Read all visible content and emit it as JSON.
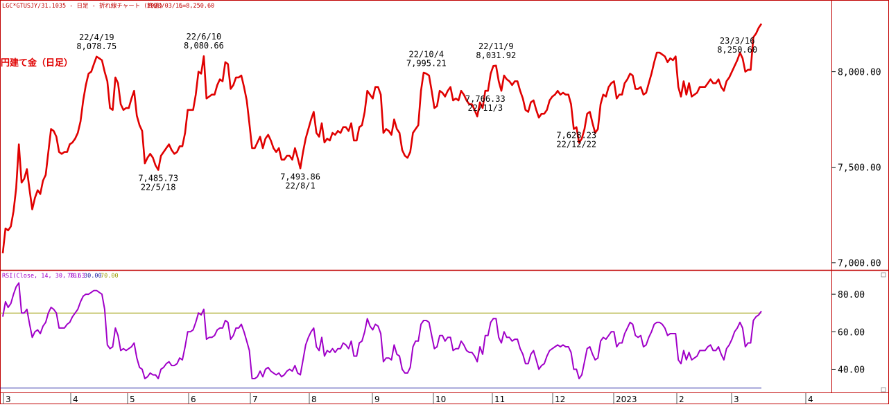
{
  "header": {
    "symbol_line": "LGC*GTUSJY/31.1035 - 日足 - 折れ線チャート (終値)",
    "date": "2023/03/16",
    "last": "L=8,250.60"
  },
  "legend_label": "円建て金（日足）",
  "rsi_header": {
    "label": "RSI(Close, 14, 30, 70)",
    "v1": "70.63",
    "v2": "30.00",
    "v3": "70.00"
  },
  "colors": {
    "price": "#e00000",
    "rsi": "#a000c8",
    "rsi_high": "#9c9c00",
    "rsi_low": "#2020a0",
    "frame": "#c00000",
    "month_line": "#c8c8c8"
  },
  "chart_data": [
    {
      "type": "line",
      "title": "LGC*GTUSJY/31.1035 - 日足 - 折れ線チャート (終値)",
      "ylim": [
        6970,
        8310
      ],
      "y_ticks": [
        "7,000.00",
        "7,500.00",
        "8,000.00"
      ],
      "y_tick_values": [
        7000,
        7500,
        8000
      ],
      "x_month_labels": [
        "3",
        "4",
        "5",
        "6",
        "7",
        "8",
        "9",
        "10",
        "11",
        "12",
        "2023",
        "2",
        "3",
        "4"
      ],
      "grid": false,
      "series": [
        {
          "values": [
            7050,
            7180,
            7170,
            7190,
            7270,
            7390,
            7620,
            7420,
            7440,
            7490,
            7380,
            7280,
            7340,
            7380,
            7360,
            7430,
            7460,
            7580,
            7700,
            7690,
            7660,
            7580,
            7570,
            7580,
            7580,
            7620,
            7630,
            7650,
            7680,
            7740,
            7850,
            7930,
            7990,
            8000,
            8040,
            8079,
            8070,
            8060,
            8000,
            7950,
            7810,
            7800,
            7970,
            7940,
            7830,
            7800,
            7810,
            7810,
            7860,
            7900,
            7770,
            7720,
            7690,
            7520,
            7550,
            7570,
            7550,
            7510,
            7486,
            7560,
            7580,
            7600,
            7620,
            7590,
            7570,
            7580,
            7610,
            7610,
            7680,
            7800,
            7800,
            7800,
            7880,
            8000,
            7990,
            8081,
            7860,
            7870,
            7880,
            7880,
            7930,
            7960,
            7950,
            8050,
            8040,
            7910,
            7930,
            7970,
            7970,
            7980,
            7920,
            7850,
            7730,
            7600,
            7600,
            7630,
            7660,
            7600,
            7650,
            7670,
            7640,
            7600,
            7580,
            7600,
            7540,
            7540,
            7560,
            7560,
            7540,
            7600,
            7550,
            7494,
            7580,
            7650,
            7700,
            7750,
            7790,
            7680,
            7660,
            7730,
            7630,
            7650,
            7640,
            7680,
            7670,
            7690,
            7680,
            7710,
            7710,
            7690,
            7730,
            7640,
            7640,
            7710,
            7720,
            7790,
            7900,
            7880,
            7860,
            7920,
            7920,
            7880,
            7680,
            7700,
            7690,
            7670,
            7750,
            7700,
            7680,
            7590,
            7560,
            7550,
            7580,
            7680,
            7700,
            7720,
            7900,
            7995,
            7990,
            7980,
            7900,
            7810,
            7820,
            7900,
            7890,
            7870,
            7900,
            7920,
            7850,
            7860,
            7850,
            7900,
            7880,
            7850,
            7830,
            7830,
            7800,
            7766,
            7840,
            7810,
            7900,
            7900,
            7990,
            8030,
            8032,
            7950,
            7900,
            7980,
            7960,
            7950,
            7930,
            7950,
            7950,
            7900,
            7860,
            7800,
            7790,
            7840,
            7850,
            7800,
            7760,
            7780,
            7780,
            7800,
            7850,
            7870,
            7880,
            7900,
            7880,
            7890,
            7880,
            7880,
            7830,
            7700,
            7710,
            7628,
            7650,
            7700,
            7780,
            7790,
            7730,
            7680,
            7700,
            7830,
            7880,
            7870,
            7920,
            7940,
            7950,
            7860,
            7880,
            7880,
            7940,
            7960,
            7990,
            7980,
            7910,
            7910,
            7920,
            7880,
            7890,
            7940,
            7990,
            8050,
            8100,
            8100,
            8090,
            8080,
            8050,
            8070,
            8060,
            8080,
            7920,
            7870,
            7950,
            7880,
            7940,
            7870,
            7880,
            7890,
            7920,
            7920,
            7920,
            7940,
            7960,
            7940,
            7940,
            7960,
            7920,
            7900,
            7950,
            7970,
            8000,
            8030,
            8060,
            8100,
            8070,
            8000,
            8010,
            8010,
            8180,
            8200,
            8230,
            8251
          ]
        }
      ],
      "annotations": [
        {
          "value_label": "22/4/19",
          "date_label": "8,078.75",
          "index": 35,
          "pos": "above"
        },
        {
          "value_label": "7,485.73",
          "date_label": "22/5/18",
          "index": 58,
          "pos": "below"
        },
        {
          "value_label": "22/6/10",
          "date_label": "8,080.66",
          "index": 75,
          "pos": "above"
        },
        {
          "value_label": "7,493.86",
          "date_label": "22/8/1",
          "index": 111,
          "pos": "below"
        },
        {
          "value_label": "22/10/4",
          "date_label": "7,995.21",
          "index": 158,
          "pos": "above"
        },
        {
          "value_label": "7,766.33",
          "date_label": "22/11/3",
          "index": 180,
          "pos": "below"
        },
        {
          "value_label": "22/11/9",
          "date_label": "8,031.92",
          "index": 184,
          "pos": "above"
        },
        {
          "value_label": "7,628.23",
          "date_label": "22/12/22",
          "index": 214,
          "pos": "below"
        },
        {
          "value_label": "23/3/16",
          "date_label": "8,250.60",
          "index": 274,
          "pos": "above"
        }
      ]
    },
    {
      "type": "line",
      "title": "RSI(Close, 14, 30, 70)",
      "ylim": [
        28,
        90
      ],
      "y_ticks": [
        "40.00",
        "60.00",
        "80.00"
      ],
      "y_tick_values": [
        40,
        60,
        80
      ],
      "ref_lines": [
        70,
        30
      ],
      "series": [
        {
          "values": [
            68,
            76,
            73,
            75,
            80,
            84,
            86,
            70,
            70,
            72,
            64,
            57,
            60,
            61,
            59,
            63,
            65,
            70,
            73,
            72,
            70,
            62,
            62,
            62,
            64,
            65,
            68,
            70,
            72,
            76,
            79,
            80,
            80,
            81,
            82,
            82,
            81,
            80,
            72,
            53,
            51,
            52,
            62,
            58,
            50,
            51,
            50,
            51,
            52,
            54,
            46,
            41,
            40,
            35,
            36,
            38,
            37,
            37,
            35,
            40,
            41,
            43,
            44,
            42,
            42,
            43,
            46,
            45,
            52,
            60,
            60,
            61,
            65,
            70,
            69,
            72,
            56,
            57,
            57,
            58,
            61,
            62,
            62,
            66,
            65,
            56,
            58,
            62,
            62,
            64,
            60,
            55,
            50,
            35,
            35,
            36,
            39,
            36,
            40,
            41,
            39,
            38,
            37,
            38,
            36,
            37,
            39,
            40,
            39,
            42,
            38,
            37,
            45,
            53,
            57,
            60,
            62,
            52,
            50,
            57,
            47,
            50,
            49,
            51,
            49,
            51,
            51,
            54,
            53,
            51,
            55,
            47,
            47,
            54,
            55,
            60,
            67,
            63,
            61,
            64,
            63,
            59,
            44,
            46,
            46,
            45,
            53,
            48,
            47,
            40,
            38,
            38,
            41,
            52,
            55,
            55,
            64,
            66,
            66,
            65,
            58,
            51,
            52,
            58,
            58,
            55,
            57,
            57,
            50,
            51,
            51,
            55,
            53,
            50,
            49,
            49,
            47,
            44,
            52,
            48,
            58,
            58,
            65,
            67,
            67,
            57,
            54,
            60,
            57,
            57,
            55,
            56,
            56,
            51,
            48,
            43,
            43,
            48,
            50,
            45,
            40,
            42,
            43,
            47,
            50,
            51,
            52,
            53,
            52,
            53,
            52,
            52,
            49,
            40,
            40,
            35,
            37,
            44,
            51,
            52,
            48,
            45,
            46,
            55,
            57,
            56,
            58,
            60,
            60,
            52,
            54,
            54,
            59,
            62,
            65,
            64,
            58,
            57,
            58,
            52,
            53,
            57,
            60,
            64,
            65,
            65,
            64,
            62,
            58,
            59,
            59,
            59,
            45,
            43,
            50,
            45,
            49,
            45,
            46,
            47,
            50,
            50,
            50,
            52,
            53,
            50,
            50,
            52,
            48,
            45,
            51,
            53,
            56,
            60,
            62,
            65,
            62,
            52,
            54,
            54,
            66,
            68,
            69,
            71
          ]
        }
      ]
    }
  ]
}
